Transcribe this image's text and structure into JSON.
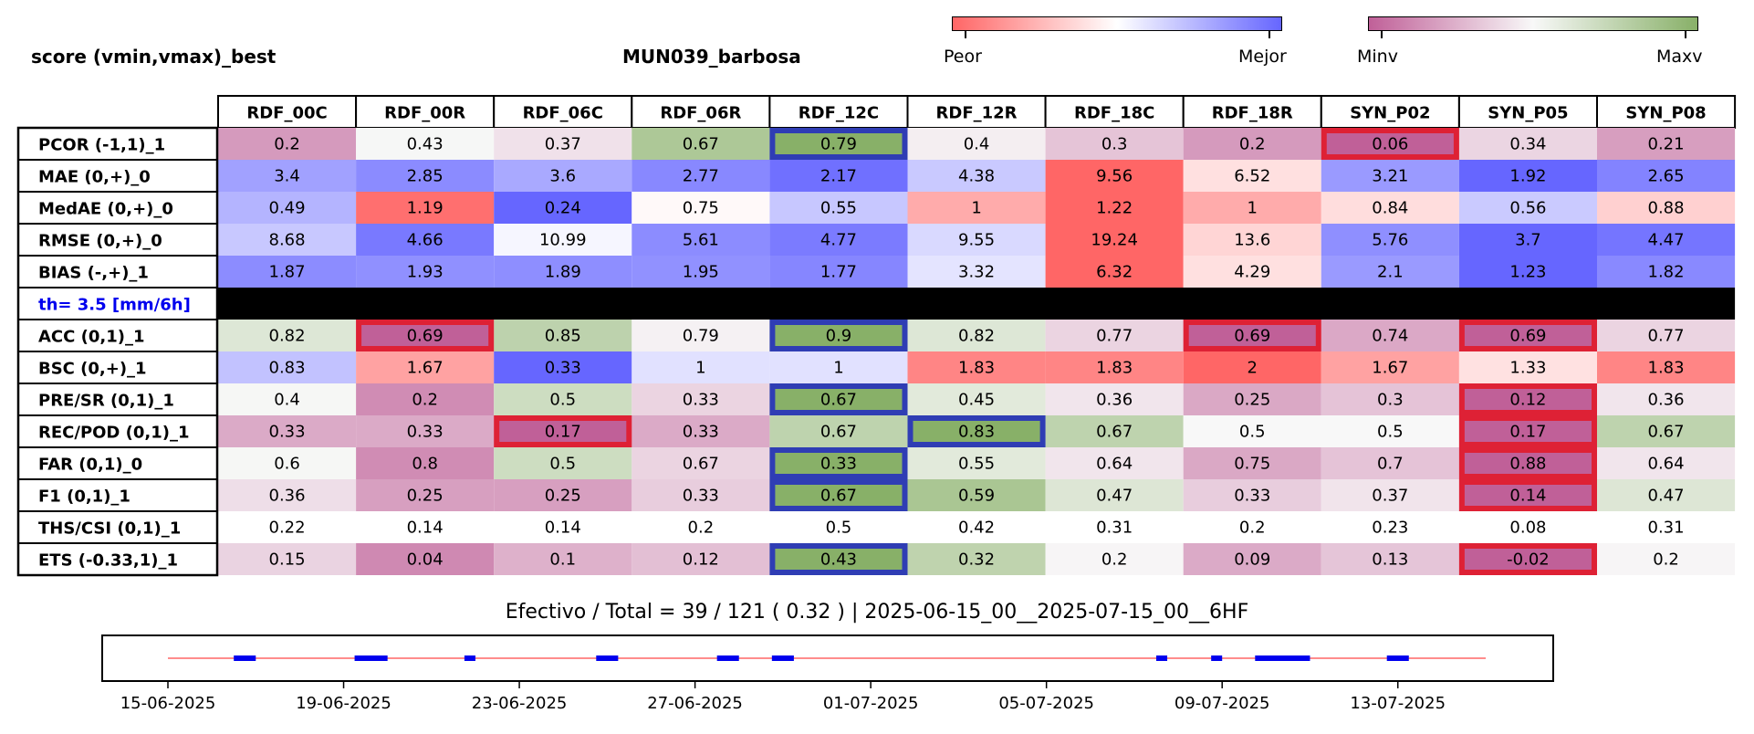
{
  "title_left": "score (vmin,vmax)_best",
  "title_mid": "MUN039_barbosa",
  "colorbar_score": {
    "low_label": "Peor",
    "high_label": "Mejor",
    "low_color": "#ff6666",
    "mid_color": "#ffffff",
    "high_color": "#6666ff"
  },
  "colorbar_value": {
    "low_label": "Minv",
    "high_label": "Maxv",
    "low_color": "#c06098",
    "mid_color": "#f8f8f8",
    "high_color": "#88b068"
  },
  "threshold_label": "th= 3.5 [mm/6h]",
  "summary_text": "Efectivo / Total  =  39 / 121 ( 0.32 ) | 2025-06-15_00__2025-07-15_00__6HF",
  "chart_data": [
    {
      "type": "heatmap",
      "columns": [
        "RDF_00C",
        "RDF_00R",
        "RDF_06C",
        "RDF_06R",
        "RDF_12C",
        "RDF_12R",
        "RDF_18C",
        "RDF_18R",
        "SYN_P02",
        "SYN_P05",
        "SYN_P08"
      ],
      "rows": [
        {
          "label": "PCOR (-1,1)_1",
          "palette": "value",
          "values": [
            0.2,
            0.43,
            0.37,
            0.67,
            0.79,
            0.4,
            0.3,
            0.2,
            0.06,
            0.34,
            0.21
          ],
          "highlight": {
            "best": [
              4
            ],
            "worst": [
              8
            ]
          }
        },
        {
          "label": "MAE (0,+)_0",
          "palette": "score",
          "values": [
            3.4,
            2.85,
            3.6,
            2.77,
            2.17,
            4.38,
            9.56,
            6.52,
            3.21,
            1.92,
            2.65
          ],
          "highlight": {
            "best": [],
            "worst": []
          }
        },
        {
          "label": "MedAE (0,+)_0",
          "palette": "score",
          "values": [
            0.49,
            1.19,
            0.24,
            0.75,
            0.55,
            1.0,
            1.22,
            1.0,
            0.84,
            0.56,
            0.88
          ],
          "highlight": {
            "best": [],
            "worst": []
          }
        },
        {
          "label": "RMSE (0,+)_0",
          "palette": "score",
          "values": [
            8.68,
            4.66,
            10.99,
            5.61,
            4.77,
            9.55,
            19.24,
            13.6,
            5.76,
            3.7,
            4.47
          ],
          "highlight": {
            "best": [],
            "worst": []
          }
        },
        {
          "label": "BIAS (-,+)_1",
          "palette": "score",
          "values": [
            1.87,
            1.93,
            1.89,
            1.95,
            1.77,
            3.32,
            6.32,
            4.29,
            2.1,
            1.23,
            1.82
          ],
          "highlight": {
            "best": [],
            "worst": []
          }
        },
        {
          "label": "th= 3.5 [mm/6h]",
          "palette": "separator",
          "values": [],
          "highlight": {
            "best": [],
            "worst": []
          }
        },
        {
          "label": "ACC (0,1)_1",
          "palette": "value",
          "values": [
            0.82,
            0.69,
            0.85,
            0.79,
            0.9,
            0.82,
            0.77,
            0.69,
            0.74,
            0.69,
            0.77
          ],
          "highlight": {
            "best": [
              4
            ],
            "worst": [
              1,
              7,
              9
            ]
          }
        },
        {
          "label": "BSC (0,+)_1",
          "palette": "score",
          "values": [
            0.83,
            1.67,
            0.33,
            1.0,
            1.0,
            1.83,
            1.83,
            2.0,
            1.67,
            1.33,
            1.83
          ],
          "highlight": {
            "best": [],
            "worst": []
          }
        },
        {
          "label": "PRE/SR (0,1)_1",
          "palette": "value",
          "values": [
            0.4,
            0.2,
            0.5,
            0.33,
            0.67,
            0.45,
            0.36,
            0.25,
            0.3,
            0.12,
            0.36
          ],
          "highlight": {
            "best": [
              4
            ],
            "worst": [
              9
            ]
          }
        },
        {
          "label": "REC/POD (0,1)_1",
          "palette": "value",
          "values": [
            0.33,
            0.33,
            0.17,
            0.33,
            0.67,
            0.83,
            0.67,
            0.5,
            0.5,
            0.17,
            0.67
          ],
          "highlight": {
            "best": [
              5
            ],
            "worst": [
              2,
              9
            ]
          }
        },
        {
          "label": "FAR (0,1)_0",
          "palette": "value",
          "values": [
            0.6,
            0.8,
            0.5,
            0.67,
            0.33,
            0.55,
            0.64,
            0.75,
            0.7,
            0.88,
            0.64
          ],
          "highlight": {
            "best": [
              4
            ],
            "worst": [
              9
            ]
          }
        },
        {
          "label": "F1 (0,1)_1",
          "palette": "value",
          "values": [
            0.36,
            0.25,
            0.25,
            0.33,
            0.67,
            0.59,
            0.47,
            0.33,
            0.37,
            0.14,
            0.47
          ],
          "highlight": {
            "best": [
              4
            ],
            "worst": [
              9
            ]
          }
        },
        {
          "label": "THS/CSI (0,1)_1",
          "palette": "none",
          "values": [
            0.22,
            0.14,
            0.14,
            0.2,
            0.5,
            0.42,
            0.31,
            0.2,
            0.23,
            0.08,
            0.31
          ],
          "highlight": {
            "best": [],
            "worst": []
          }
        },
        {
          "label": "ETS (-0.33,1)_1",
          "palette": "value",
          "values": [
            0.15,
            0.04,
            0.1,
            0.12,
            0.43,
            0.32,
            0.2,
            0.09,
            0.13,
            -0.02,
            0.2
          ],
          "highlight": {
            "best": [
              4
            ],
            "worst": [
              9
            ]
          }
        }
      ]
    },
    {
      "type": "timeline",
      "x_tick_labels": [
        "15-06-2025",
        "19-06-2025",
        "23-06-2025",
        "27-06-2025",
        "01-07-2025",
        "05-07-2025",
        "09-07-2025",
        "13-07-2025"
      ],
      "x_range": [
        "2025-06-15",
        "2025-07-15"
      ],
      "line_color": "#ff6666",
      "event_color": "#0000ee",
      "events": [
        [
          "2025-06-16 12:00",
          "2025-06-17 00:00"
        ],
        [
          "2025-06-19 06:00",
          "2025-06-20 00:00"
        ],
        [
          "2025-06-21 18:00",
          "2025-06-22 00:00"
        ],
        [
          "2025-06-24 18:00",
          "2025-06-25 06:00"
        ],
        [
          "2025-06-27 12:00",
          "2025-06-28 00:00"
        ],
        [
          "2025-06-28 18:00",
          "2025-06-29 06:00"
        ],
        [
          "2025-07-07 12:00",
          "2025-07-07 18:00"
        ],
        [
          "2025-07-08 18:00",
          "2025-07-09 00:00"
        ],
        [
          "2025-07-09 18:00",
          "2025-07-11 00:00"
        ],
        [
          "2025-07-12 18:00",
          "2025-07-13 06:00"
        ]
      ]
    }
  ]
}
